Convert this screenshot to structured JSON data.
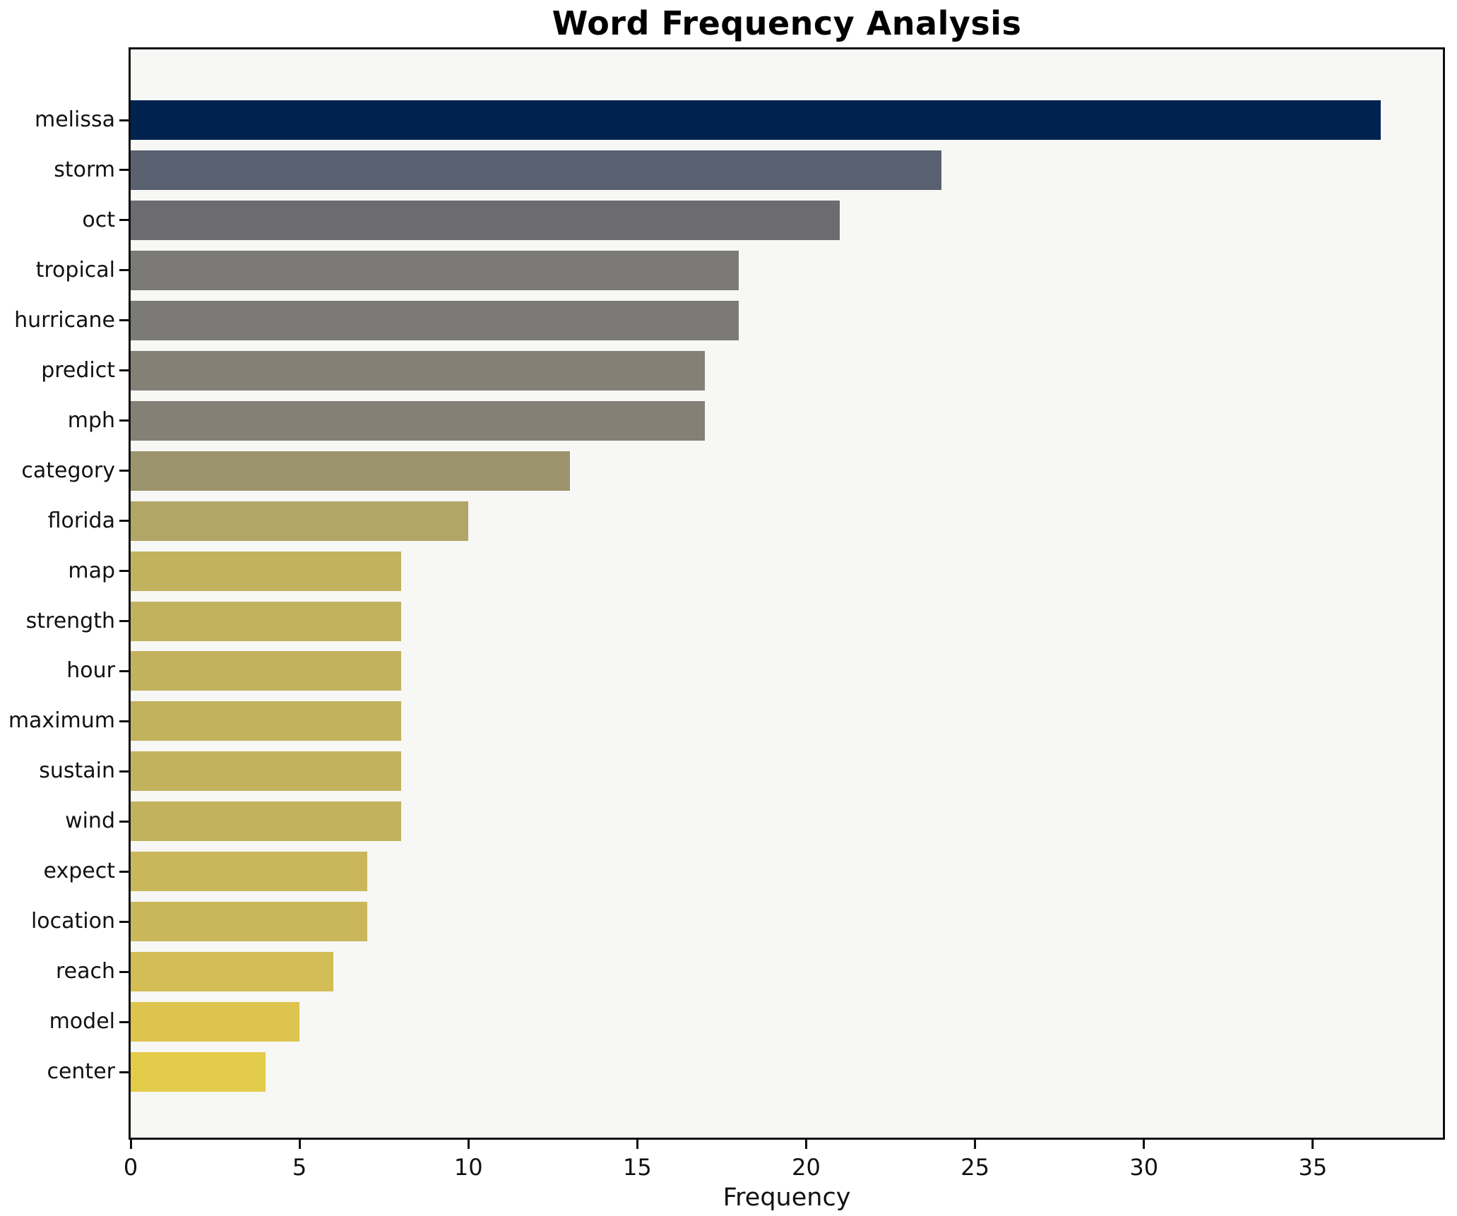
{
  "chart": {
    "title": "Word Frequency Analysis",
    "xlabel": "Frequency"
  },
  "chart_data": {
    "type": "bar",
    "orientation": "horizontal",
    "title": "Word Frequency Analysis",
    "xlabel": "Frequency",
    "ylabel": "",
    "categories": [
      "melissa",
      "storm",
      "oct",
      "tropical",
      "hurricane",
      "predict",
      "mph",
      "category",
      "florida",
      "map",
      "strength",
      "hour",
      "maximum",
      "sustain",
      "wind",
      "expect",
      "location",
      "reach",
      "model",
      "center"
    ],
    "values": [
      37,
      24,
      21,
      18,
      18,
      17,
      17,
      13,
      10,
      8,
      8,
      8,
      8,
      8,
      8,
      7,
      7,
      6,
      5,
      4
    ],
    "bar_colors": [
      "#00224f",
      "#596070",
      "#6b6b70",
      "#7b7a76",
      "#7b7a76",
      "#848076",
      "#848076",
      "#9c946c",
      "#b1a666",
      "#c2b25e",
      "#c2b25e",
      "#c2b25e",
      "#c2b25e",
      "#c2b25e",
      "#c2b25e",
      "#cab75b",
      "#cab75b",
      "#d3bd55",
      "#dcc44e",
      "#e3cc49"
    ],
    "xlim": [
      0,
      38.85
    ],
    "xticks": [
      0,
      5,
      10,
      15,
      20,
      25,
      30,
      35
    ],
    "grid": false,
    "legend_position": "none",
    "plot_background": "#f7f7f5",
    "figure_background": "#ffffff",
    "spine_color": "#0e0e0e",
    "text_color": "#111111"
  }
}
